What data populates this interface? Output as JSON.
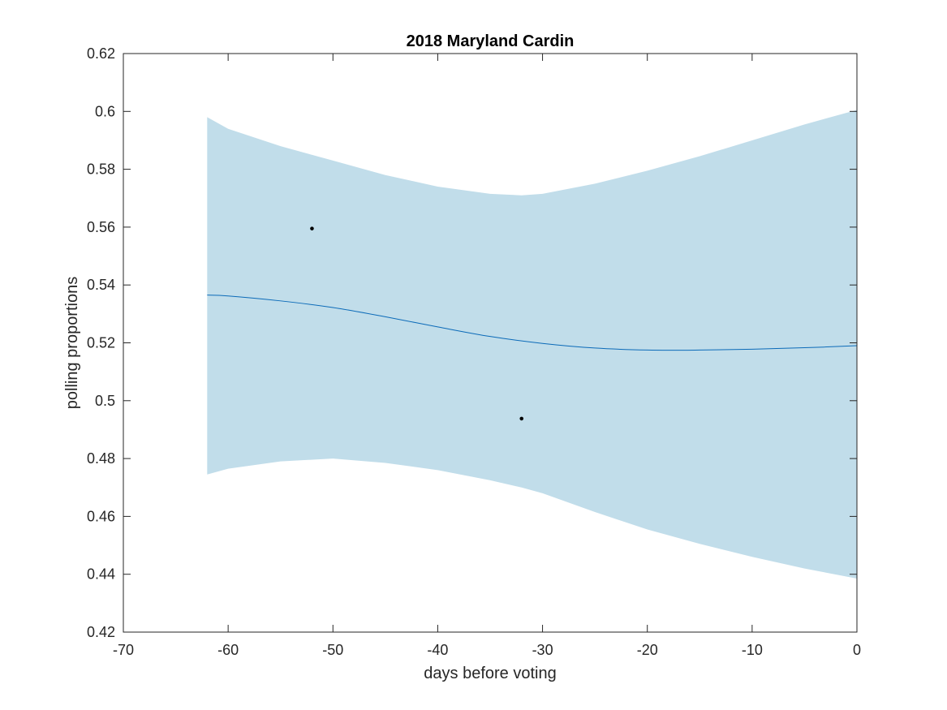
{
  "chart_data": {
    "type": "line",
    "title": "2018 Maryland Cardin",
    "xlabel": "days before voting",
    "ylabel": "polling proportions",
    "xlim": [
      -70,
      0
    ],
    "ylim": [
      0.42,
      0.62
    ],
    "xticks": [
      -70,
      -60,
      -50,
      -40,
      -30,
      -20,
      -10,
      0
    ],
    "yticks": [
      0.42,
      0.44,
      0.46,
      0.48,
      0.5,
      0.52,
      0.54,
      0.56,
      0.58,
      0.6,
      0.62
    ],
    "xtick_labels": [
      "-70",
      "-60",
      "-50",
      "-40",
      "-30",
      "-20",
      "-10",
      "0"
    ],
    "ytick_labels": [
      "0.42",
      "0.44",
      "0.46",
      "0.48",
      "0.5",
      "0.52",
      "0.54",
      "0.56",
      "0.58",
      "0.6",
      "0.62"
    ],
    "grid": false,
    "band": {
      "x": [
        -62,
        -60,
        -55,
        -50,
        -45,
        -40,
        -35,
        -32,
        -30,
        -25,
        -20,
        -15,
        -10,
        -5,
        0
      ],
      "upper": [
        0.598,
        0.594,
        0.588,
        0.583,
        0.578,
        0.574,
        0.5715,
        0.571,
        0.5715,
        0.575,
        0.5795,
        0.5845,
        0.59,
        0.5955,
        0.6005
      ],
      "lower": [
        0.4745,
        0.4765,
        0.479,
        0.48,
        0.4785,
        0.476,
        0.4725,
        0.47,
        0.468,
        0.4615,
        0.4555,
        0.4505,
        0.446,
        0.442,
        0.4385
      ],
      "color": "#c1ddea"
    },
    "series": [
      {
        "x": [
          -62,
          -60,
          -55,
          -50,
          -45,
          -40,
          -35,
          -30,
          -25,
          -20,
          -15,
          -10,
          -5,
          0
        ],
        "y": [
          0.5365,
          0.5362,
          0.5345,
          0.5322,
          0.529,
          0.5255,
          0.5222,
          0.5198,
          0.5182,
          0.5175,
          0.5175,
          0.5178,
          0.5183,
          0.519
        ],
        "color": "#0b6ab8"
      }
    ],
    "points": {
      "x": [
        -52,
        -32
      ],
      "y": [
        0.5595,
        0.4938
      ],
      "color": "#000000"
    }
  }
}
